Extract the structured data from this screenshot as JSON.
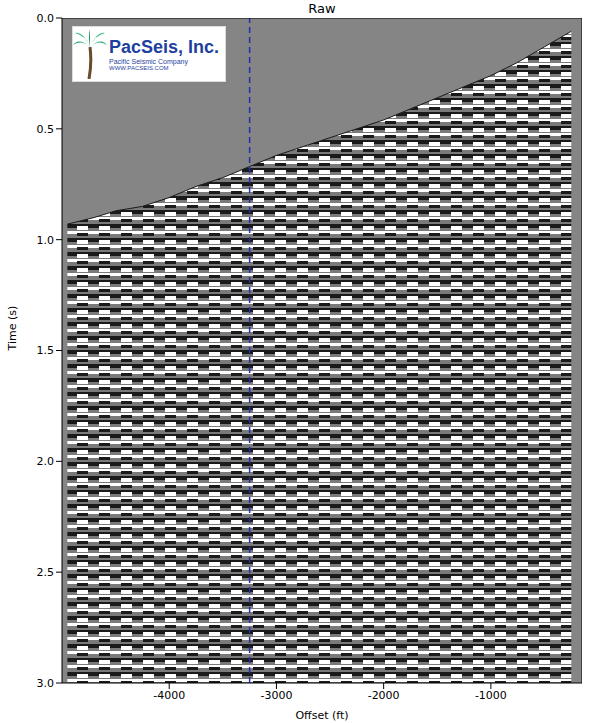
{
  "chart_data": {
    "type": "area",
    "title": "Raw",
    "x_label": "Offset (ft)",
    "y_label": "Time (s)",
    "x": [
      -4950,
      -4700,
      -4500,
      -4250,
      -4000,
      -3750,
      -3500,
      -3250,
      -3000,
      -2750,
      -2500,
      -2250,
      -2000,
      -1750,
      -1500,
      -1250,
      -1000,
      -750,
      -500,
      -250
    ],
    "values": [
      0.93,
      0.9,
      0.87,
      0.85,
      0.81,
      0.76,
      0.72,
      0.67,
      0.62,
      0.58,
      0.54,
      0.5,
      0.46,
      0.41,
      0.36,
      0.31,
      0.26,
      0.2,
      0.13,
      0.06
    ],
    "color": "#1a1a1a",
    "xlim": [
      -5000,
      -150
    ],
    "xticks": [
      -4000,
      -3000,
      -2000,
      -1000
    ],
    "ylim": [
      0,
      3
    ],
    "yticks": [
      {
        "value": 0,
        "label": "0.0"
      },
      {
        "value": 0.5,
        "label": "0.5"
      },
      {
        "value": 1,
        "label": "1.0"
      },
      {
        "value": 1.5,
        "label": "1.5"
      },
      {
        "value": 2,
        "label": "2.0"
      },
      {
        "value": 2.5,
        "label": "2.5"
      },
      {
        "value": 3,
        "label": "3.0"
      }
    ],
    "reference_line": {
      "x": -3250,
      "color": "#1f2fb4",
      "line_style": "dashed"
    },
    "logo": {
      "title": "PacSeis, Inc.",
      "subtitle": "Pacific Seismic Company",
      "url": "WWW.PACSEIS.COM"
    },
    "grid": false
  }
}
